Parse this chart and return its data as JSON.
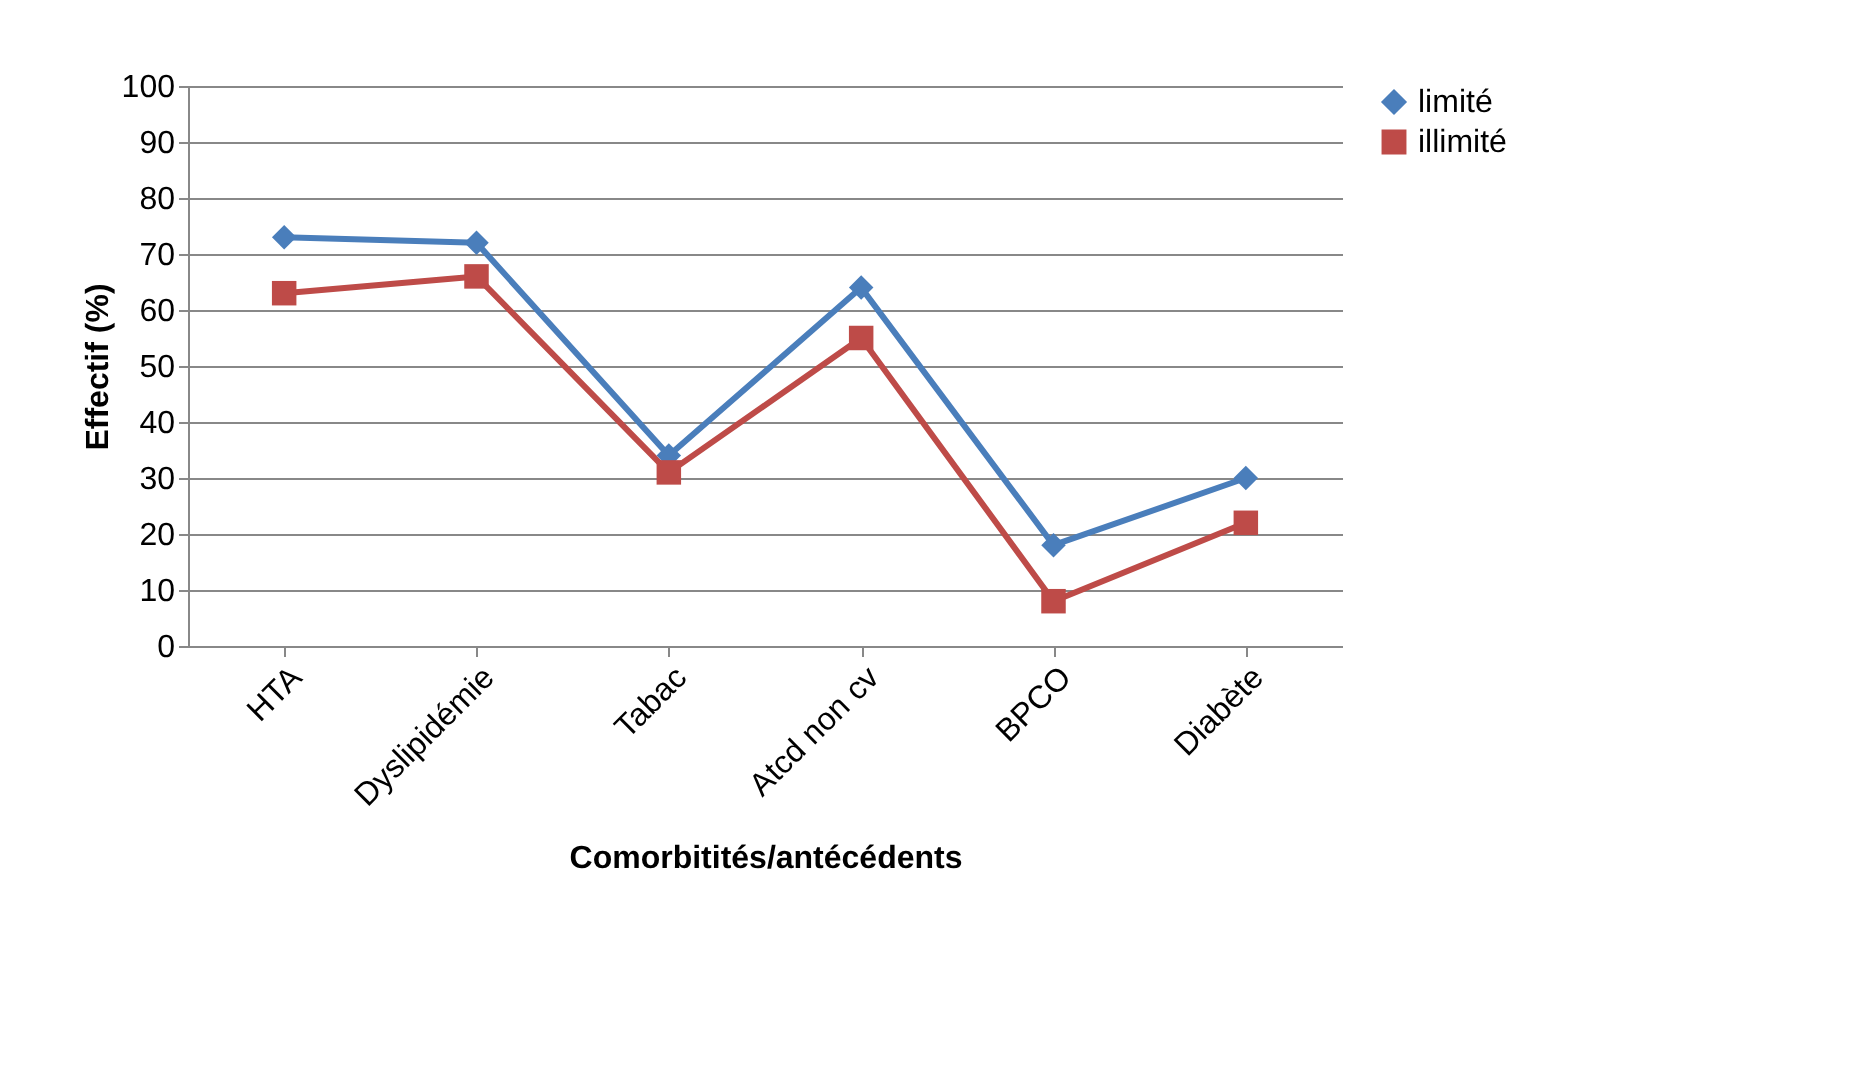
{
  "chart_data": {
    "type": "line",
    "xlabel": "Comorbitités/antécédents",
    "ylabel": "Effectif (%)",
    "categories": [
      "HTA",
      "Dyslipidémie",
      "Tabac",
      "Atcd non cv",
      "BPCO",
      "Diabète"
    ],
    "series": [
      {
        "name": "limité",
        "color": "#4a7ebb",
        "marker": "diamond",
        "values": [
          73,
          72,
          34,
          64,
          18,
          30
        ]
      },
      {
        "name": "illimité",
        "color": "#be4b48",
        "marker": "square",
        "values": [
          63,
          66,
          31,
          55,
          8,
          22
        ]
      }
    ],
    "ylim": [
      0,
      100
    ],
    "yticks": [
      0,
      10,
      20,
      30,
      40,
      50,
      60,
      70,
      80,
      90,
      100
    ],
    "grid": "y",
    "legend": "right",
    "line_style": "solid"
  }
}
